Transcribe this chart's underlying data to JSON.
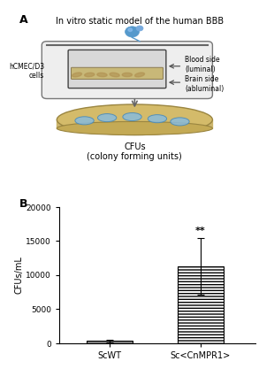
{
  "panel_b": {
    "categories": [
      "ScWT",
      "Sc<CnMPR1>"
    ],
    "values": [
      350,
      11300
    ],
    "errors": [
      200,
      4200
    ],
    "ylabel": "CFUs/mL",
    "ylim": [
      0,
      20000
    ],
    "yticks": [
      0,
      5000,
      10000,
      15000,
      20000
    ],
    "significance": "**",
    "bar_color_1": "#888888",
    "bar_color_2": "#ffffff",
    "bar_edge_color": "#000000",
    "figure_bg": "#ffffff"
  },
  "panel_a": {
    "title": "In vitro static model of the human BBB",
    "label_left": "hCMEC/D3\ncells",
    "label_right_top": "Blood side\n(luminal)",
    "label_right_bottom": "Brain side\n(abluminal)",
    "label_bottom1": "CFUs",
    "label_bottom2": "(colony forming units)"
  }
}
